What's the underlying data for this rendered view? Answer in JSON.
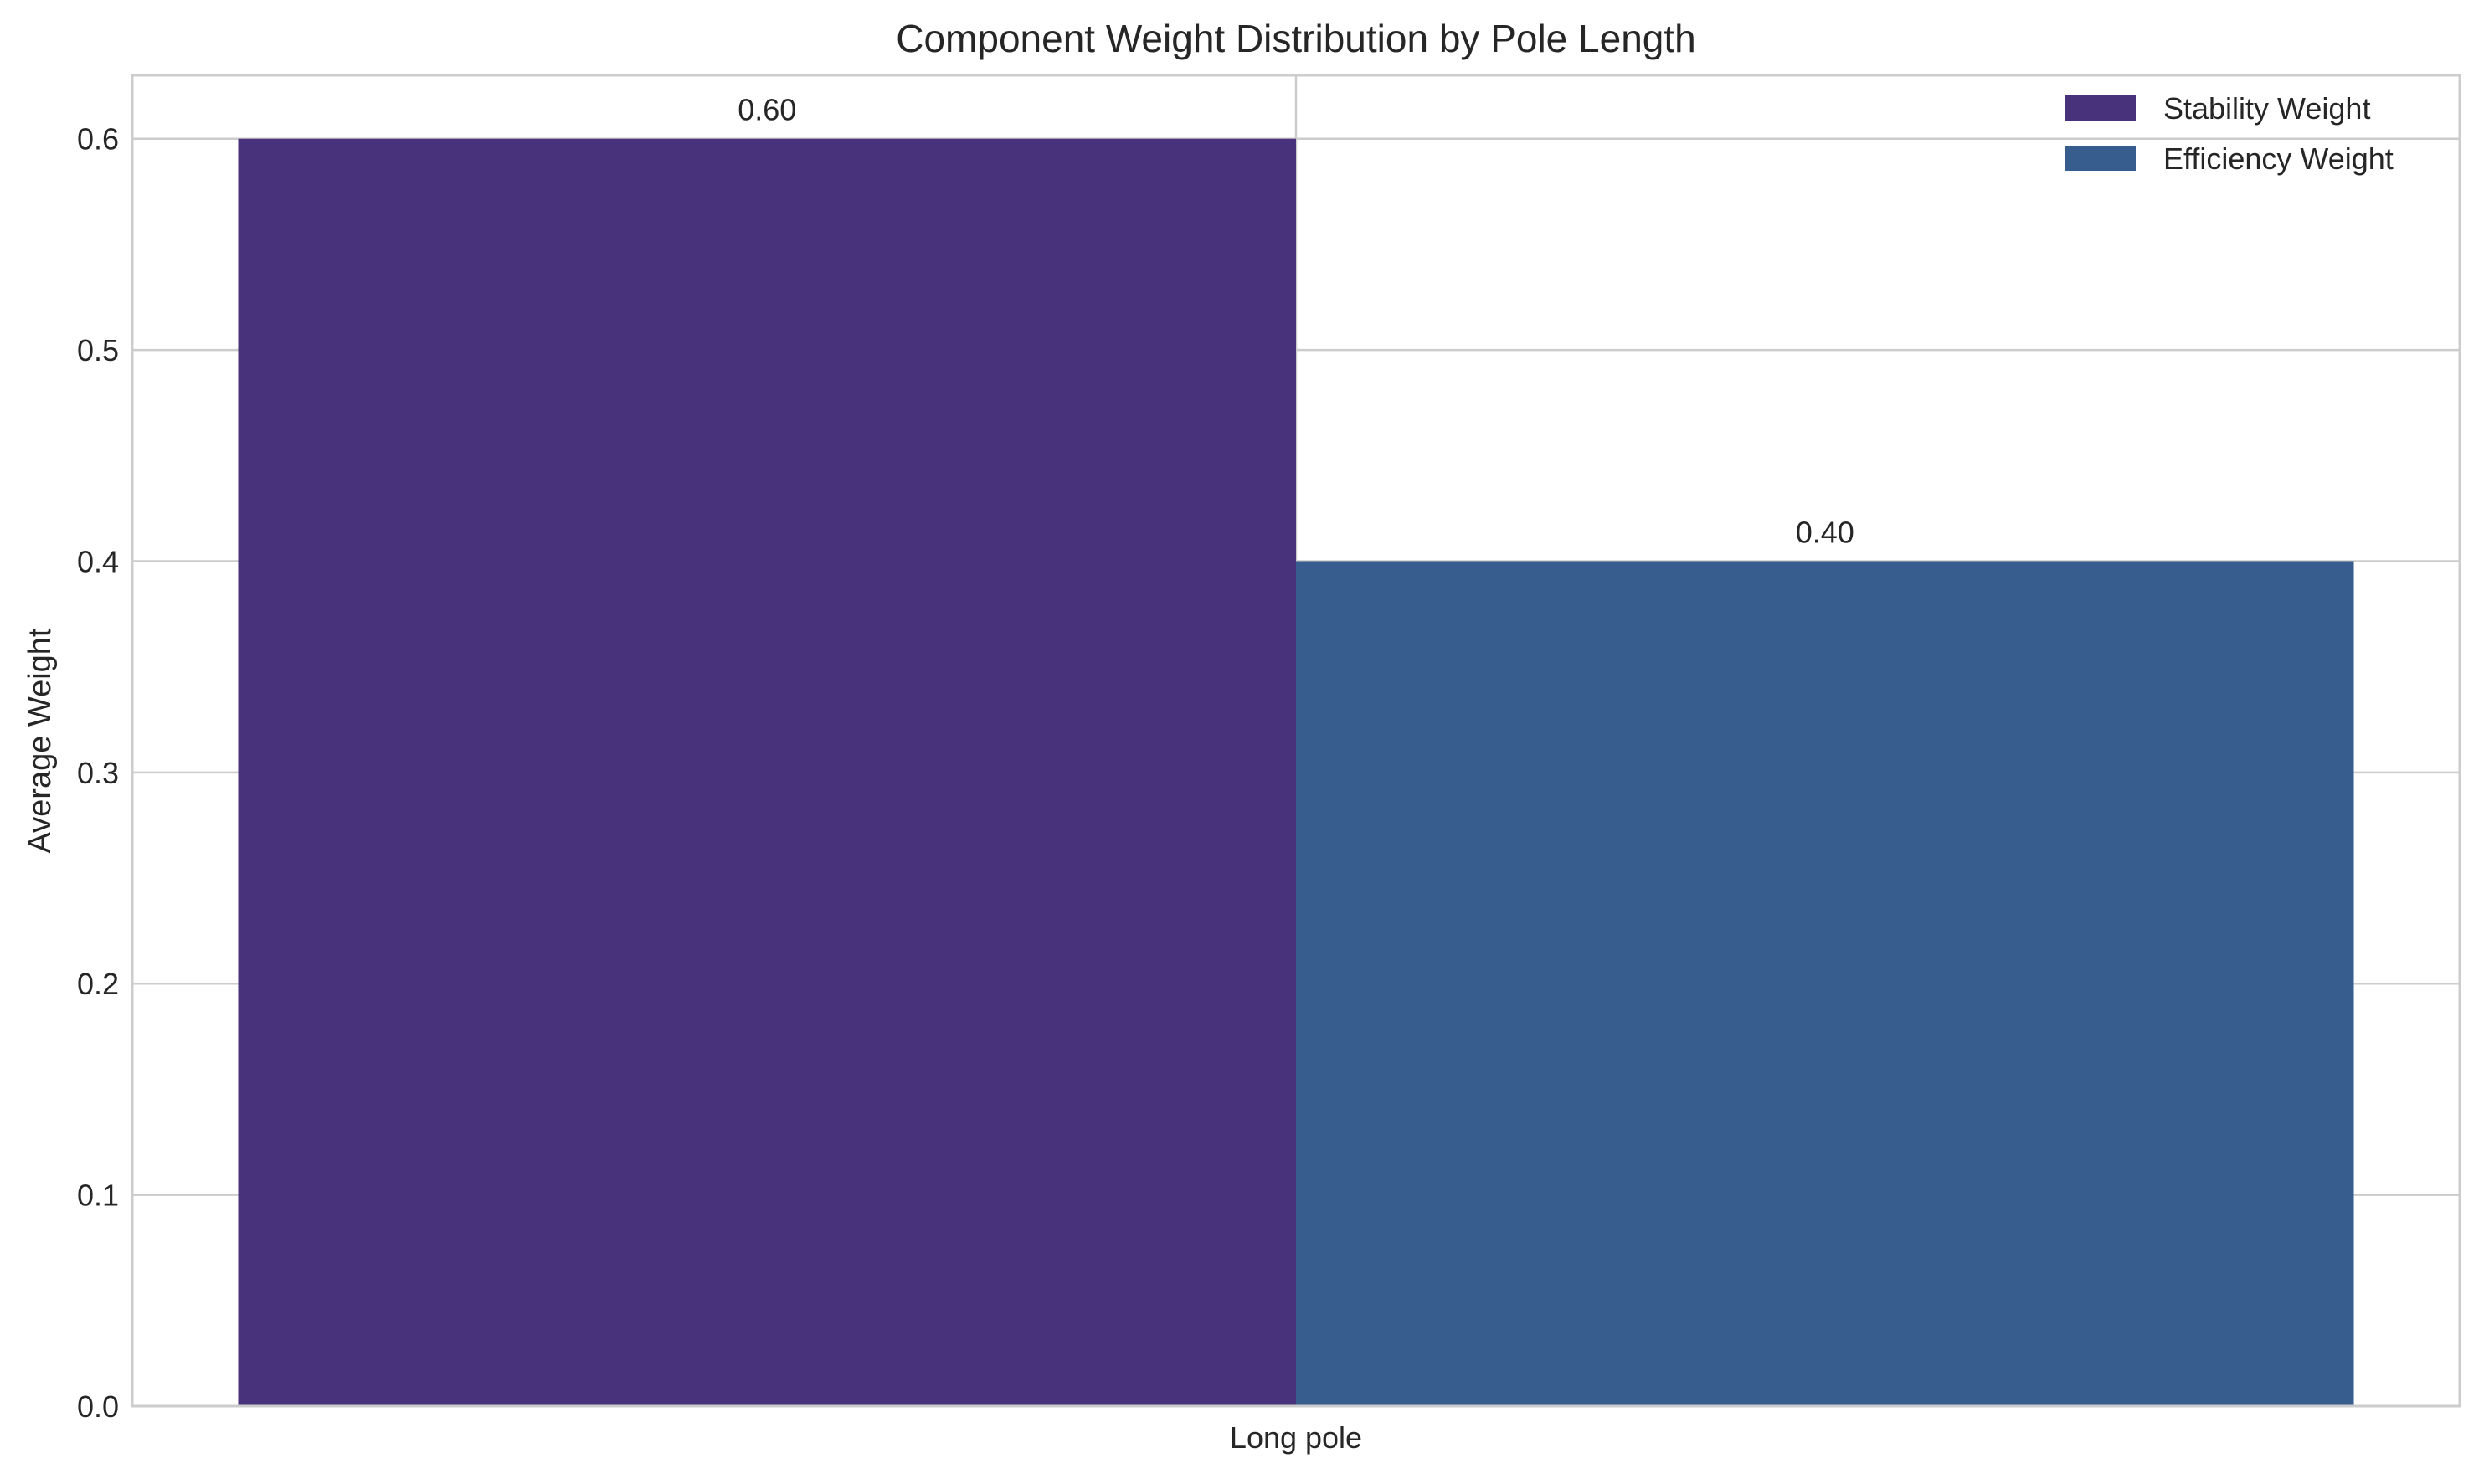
{
  "chart_data": {
    "type": "bar",
    "title": "Component Weight Distribution by Pole Length",
    "xlabel": "",
    "ylabel": "Average Weight",
    "categories": [
      "Long pole"
    ],
    "series": [
      {
        "name": "Stability Weight",
        "values": [
          0.6
        ],
        "labels": [
          "0.60"
        ],
        "color": "#48327c"
      },
      {
        "name": "Efficiency Weight",
        "values": [
          0.4
        ],
        "labels": [
          "0.40"
        ],
        "color": "#375c8e"
      }
    ],
    "ylim": [
      0,
      0.63
    ],
    "yticks": [
      0.0,
      0.1,
      0.2,
      0.3,
      0.4,
      0.5,
      0.6
    ],
    "ytick_labels": [
      "0.0",
      "0.1",
      "0.2",
      "0.3",
      "0.4",
      "0.5",
      "0.6"
    ],
    "grid": true,
    "legend_position": "top-right"
  }
}
